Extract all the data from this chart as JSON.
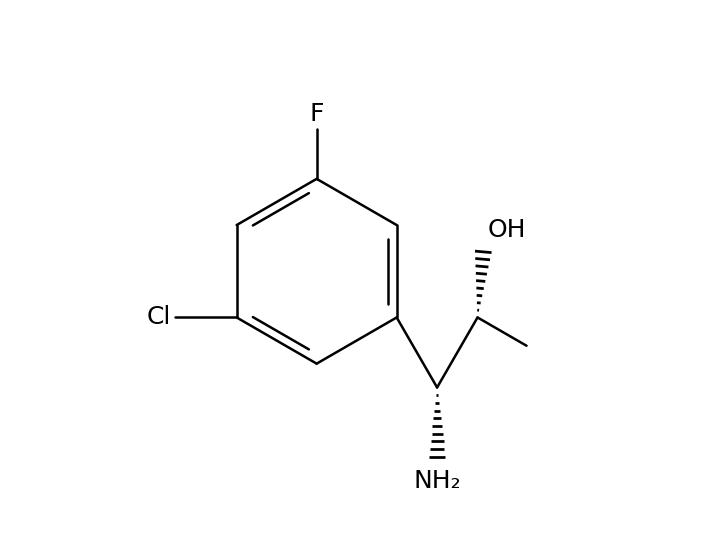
{
  "background": "#ffffff",
  "line_color": "#000000",
  "line_width": 1.8,
  "font_size": 16,
  "atoms": {
    "F_label": "F",
    "Cl_label": "Cl",
    "OH_label": "OH",
    "NH2_label": "NH₂"
  }
}
